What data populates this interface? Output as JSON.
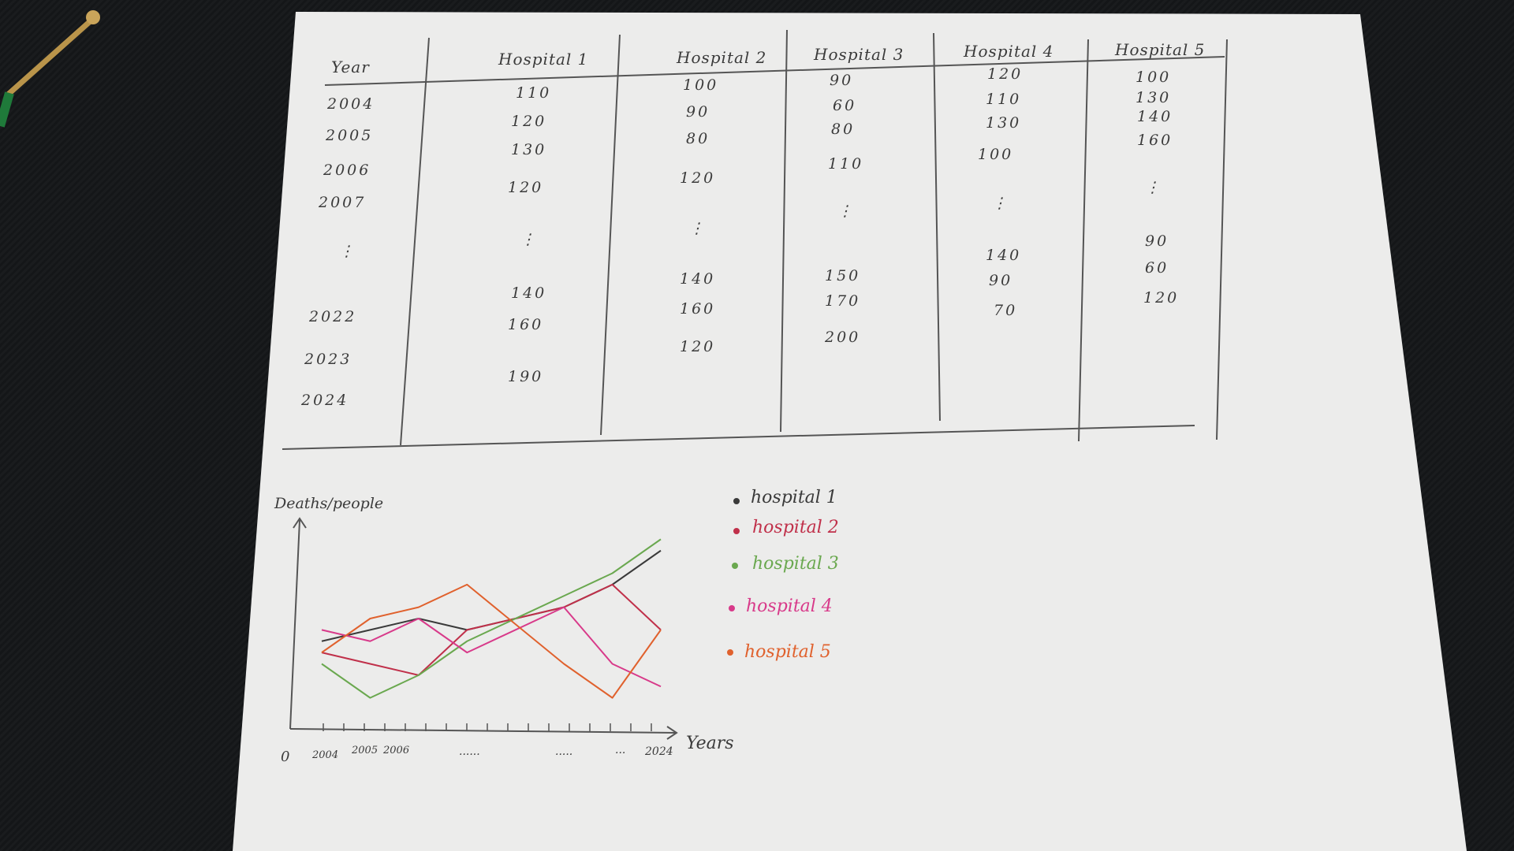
{
  "table": {
    "columns": [
      "Year",
      "Hospital 1",
      "Hospital 2",
      "Hospital 3",
      "Hospital 4",
      "Hospital 5"
    ],
    "year_col": [
      "2004",
      "2005",
      "2006",
      "2007",
      "⋮",
      "2022",
      "2023",
      "2024"
    ],
    "hospital1": [
      "110",
      "120",
      "130",
      "120",
      "⋮",
      "140",
      "160",
      "190"
    ],
    "hospital2": [
      "100",
      "90",
      "80",
      "120",
      "⋮",
      "140",
      "160",
      "120"
    ],
    "hospital3": [
      "90",
      "60",
      "80",
      "110",
      "⋮",
      "150",
      "170",
      "200"
    ],
    "hospital4": [
      "120",
      "110",
      "130",
      "100",
      "⋮",
      "140",
      "90",
      "70"
    ],
    "hospital5": [
      "100",
      "130",
      "140",
      "160",
      "⋮",
      "90",
      "60",
      "120"
    ]
  },
  "chart": {
    "ylabel": "Deaths/people",
    "xlabel": "Years",
    "origin": "0",
    "ticks": [
      "2004",
      "2005",
      "2006",
      "......",
      ".....",
      "...",
      "2024"
    ]
  },
  "legend": [
    {
      "label": "hospital 1",
      "color": "#3a3a3a"
    },
    {
      "label": "hospital 2",
      "color": "#c0304a"
    },
    {
      "label": "hospital 3",
      "color": "#6aa84f"
    },
    {
      "label": "hospital 4",
      "color": "#d83a8a"
    },
    {
      "label": "hospital 5",
      "color": "#e0612d"
    }
  ],
  "chart_data": {
    "type": "line",
    "title": "",
    "xlabel": "Years",
    "ylabel": "Deaths/people",
    "x": [
      "2004",
      "2005",
      "2006",
      "2007",
      "...",
      "2022",
      "2023",
      "2024"
    ],
    "series": [
      {
        "name": "hospital 1",
        "values": [
          110,
          120,
          130,
          120,
          null,
          140,
          160,
          190
        ]
      },
      {
        "name": "hospital 2",
        "values": [
          100,
          90,
          80,
          120,
          null,
          140,
          160,
          120
        ]
      },
      {
        "name": "hospital 3",
        "values": [
          90,
          60,
          80,
          110,
          null,
          150,
          170,
          200
        ]
      },
      {
        "name": "hospital 4",
        "values": [
          120,
          110,
          130,
          100,
          null,
          140,
          90,
          70
        ]
      },
      {
        "name": "hospital 5",
        "values": [
          100,
          130,
          140,
          160,
          null,
          90,
          60,
          120
        ]
      }
    ],
    "legend": "right",
    "grid": false
  }
}
